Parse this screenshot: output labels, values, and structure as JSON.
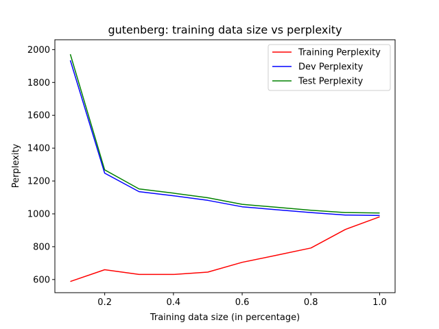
{
  "chart_data": {
    "type": "line",
    "title": "gutenberg: training data size vs perplexity",
    "xlabel": "Training data size (in percentage)",
    "ylabel": "Perplexity",
    "xlim": [
      0.055,
      1.045
    ],
    "ylim": [
      520,
      2060
    ],
    "xticks": [
      "0.2",
      "0.4",
      "0.6",
      "0.8",
      "1.0"
    ],
    "yticks": [
      "600",
      "800",
      "1000",
      "1200",
      "1400",
      "1600",
      "1800",
      "2000"
    ],
    "grid": false,
    "legend_position": "top-right",
    "x": [
      0.1,
      0.2,
      0.3,
      0.4,
      0.5,
      0.6,
      0.7,
      0.8,
      0.9,
      1.0
    ],
    "series": [
      {
        "name": "Training Perplexity",
        "color": "#ff0000",
        "values": [
          588,
          660,
          631,
          631,
          645,
          705,
          748,
          792,
          905,
          982
        ]
      },
      {
        "name": "Dev Perplexity",
        "color": "#0000ff",
        "values": [
          1935,
          1248,
          1135,
          1110,
          1082,
          1043,
          1025,
          1008,
          993,
          990
        ]
      },
      {
        "name": "Test Perplexity",
        "color": "#008000",
        "values": [
          1972,
          1268,
          1152,
          1126,
          1098,
          1058,
          1040,
          1022,
          1008,
          1005
        ]
      }
    ]
  }
}
